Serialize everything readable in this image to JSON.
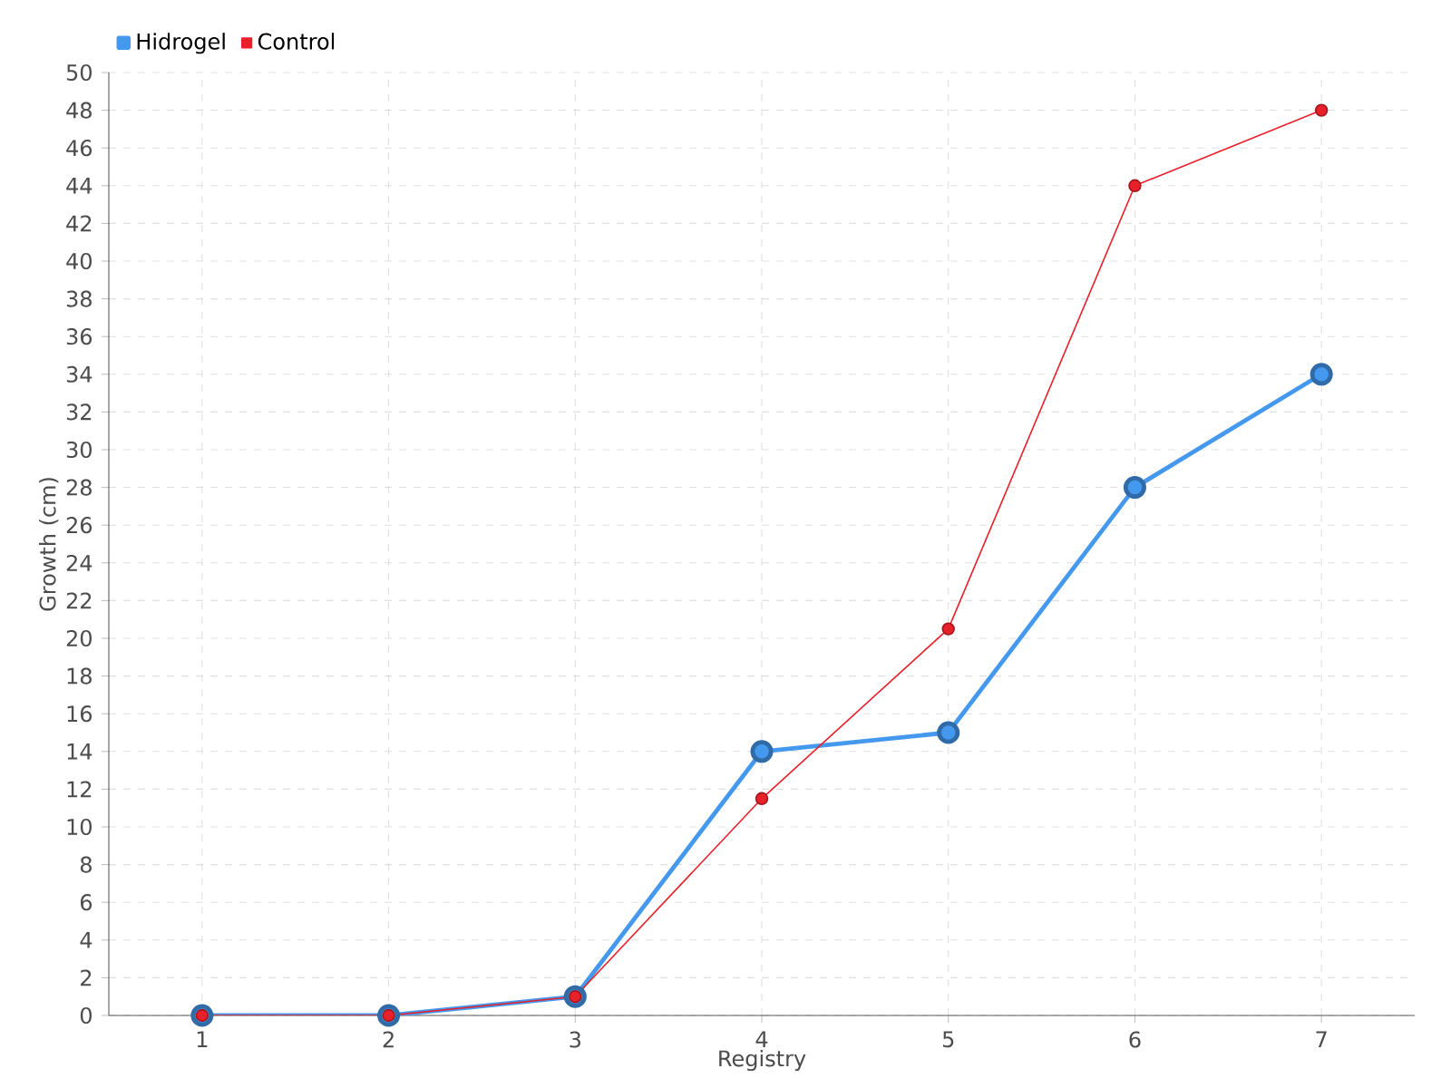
{
  "chart_data": {
    "type": "line",
    "xlabel": "Registry",
    "ylabel": "Growth (cm)",
    "categories": [
      "1",
      "2",
      "3",
      "4",
      "5",
      "6",
      "7"
    ],
    "series": [
      {
        "name": "Hidrogel",
        "color": "#4499ee",
        "values": [
          0,
          0,
          1,
          14,
          15,
          28,
          34
        ]
      },
      {
        "name": "Control",
        "color": "#e8202a",
        "values": [
          0,
          0,
          1,
          11.5,
          20.5,
          44,
          48
        ]
      }
    ],
    "ylim": [
      0,
      50
    ],
    "yticks": [
      0,
      2,
      4,
      6,
      8,
      10,
      12,
      14,
      16,
      18,
      20,
      22,
      24,
      26,
      28,
      30,
      32,
      34,
      36,
      38,
      40,
      42,
      44,
      46,
      48,
      50
    ],
    "grid": true,
    "legend": "top left",
    "marker": "circle",
    "line_style": "solid"
  }
}
